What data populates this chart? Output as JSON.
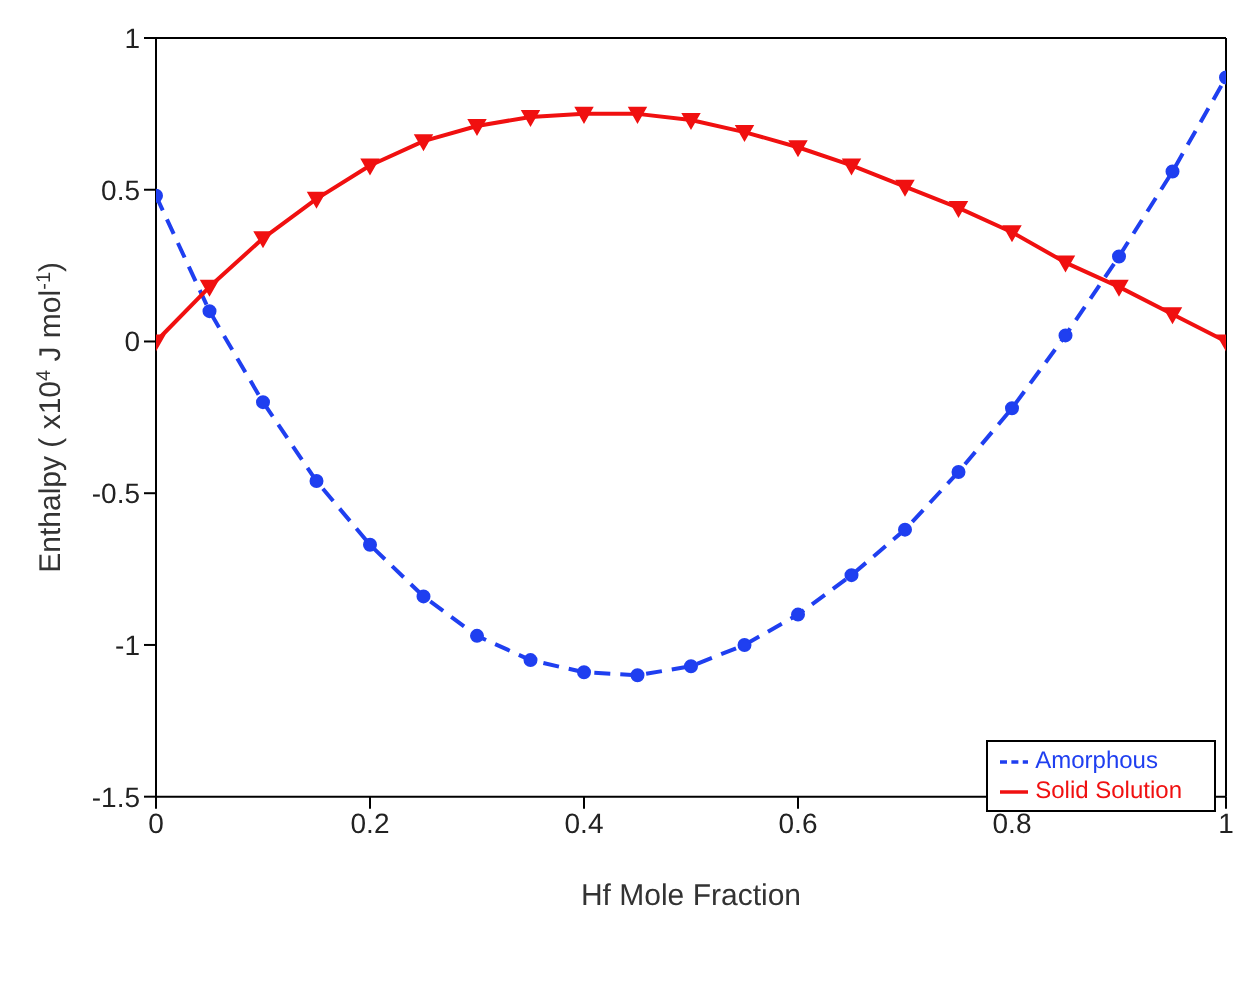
{
  "chart_data": {
    "type": "line",
    "xlabel": "Hf Mole Fraction",
    "ylabel": "Enthalpy ( x10$^{4}$ J mol$^{-1}$)",
    "x": [
      0,
      0.05,
      0.1,
      0.15,
      0.2,
      0.25,
      0.3,
      0.35,
      0.4,
      0.45,
      0.5,
      0.55,
      0.6,
      0.65,
      0.7,
      0.75,
      0.8,
      0.85,
      0.9,
      0.95,
      1
    ],
    "series": [
      {
        "name": "Amorphous",
        "color": "#1f3ff0",
        "marker": "circle",
        "line_style": "dashed",
        "values": [
          0.48,
          0.1,
          -0.2,
          -0.46,
          -0.67,
          -0.84,
          -0.97,
          -1.05,
          -1.09,
          -1.1,
          -1.07,
          -1.0,
          -0.9,
          -0.77,
          -0.62,
          -0.43,
          -0.22,
          0.02,
          0.28,
          0.56,
          0.87
        ]
      },
      {
        "name": "Solid Solution",
        "color": "#f01010",
        "marker": "triangle",
        "line_style": "solid",
        "values": [
          0,
          0.18,
          0.34,
          0.47,
          0.58,
          0.66,
          0.71,
          0.74,
          0.75,
          0.75,
          0.73,
          0.69,
          0.64,
          0.58,
          0.51,
          0.44,
          0.36,
          0.26,
          0.18,
          0.09,
          0
        ]
      }
    ],
    "xlim": [
      0,
      1
    ],
    "xticks": [
      0,
      0.2,
      0.4,
      0.6,
      0.8,
      1
    ],
    "ylim": [
      -1.5,
      1
    ],
    "yticks": [
      -1.5,
      -1,
      -0.5,
      0,
      0.5,
      1
    ],
    "grid": false,
    "legend": "bottom right"
  }
}
